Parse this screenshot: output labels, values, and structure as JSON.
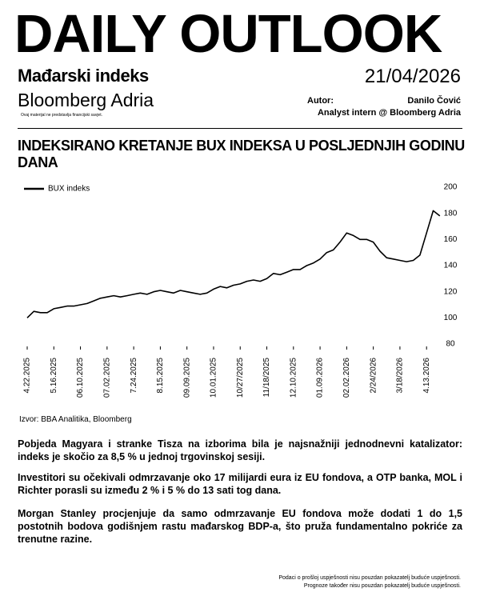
{
  "header": {
    "title": "DAILY OUTLOOK",
    "subtitle": "Mađarski indeks",
    "date": "21/04/2026",
    "brand": "Bloomberg Adria",
    "author_label": "Autor:",
    "author_name": "Danilo Čović",
    "author_role": "Analyst intern @ Bloomberg Adria",
    "disclaimer": "Ovaj materijal ne predstavlja financijski savjet."
  },
  "chart_data": {
    "type": "line",
    "title": "INDEKSIRANO KRETANJE BUX INDEKSA U POSLJEDNJIH GODINU DANA",
    "categories": [
      "4.22.2025",
      null,
      null,
      null,
      "5.16.2025",
      null,
      null,
      null,
      "06.10.2025",
      null,
      null,
      null,
      "07.02.2025",
      null,
      null,
      null,
      "7.24.2025",
      null,
      null,
      null,
      "8.15.2025",
      null,
      null,
      null,
      "09.09.2025",
      null,
      null,
      null,
      "10.01.2025",
      null,
      null,
      null,
      "10/27/2025",
      null,
      null,
      null,
      "11/18/2025",
      null,
      null,
      null,
      "12.10.2025",
      null,
      null,
      null,
      "01.09.2026",
      null,
      null,
      null,
      "02.02.2026",
      null,
      null,
      null,
      "2/24/2026",
      null,
      null,
      null,
      "3/18/2026",
      null,
      null,
      null,
      "4.13.2026",
      null,
      null
    ],
    "series": [
      {
        "name": "BUX indeks",
        "color": "#000000",
        "values": [
          100,
          105,
          104,
          104,
          107,
          108,
          109,
          109,
          110,
          111,
          113,
          115,
          116,
          117,
          116,
          117,
          118,
          119,
          118,
          120,
          121,
          120,
          119,
          121,
          120,
          119,
          118,
          119,
          122,
          124,
          123,
          125,
          126,
          128,
          129,
          128,
          130,
          134,
          133,
          135,
          137,
          137,
          140,
          142,
          145,
          150,
          152,
          158,
          165,
          163,
          160,
          160,
          158,
          151,
          146,
          145,
          144,
          143,
          144,
          148,
          165,
          182,
          178
        ]
      }
    ],
    "ylim": [
      80,
      200
    ],
    "yticks": [
      80,
      100,
      120,
      140,
      160,
      180,
      200
    ],
    "y_axis_side": "right",
    "legend": "top-left",
    "grid": false,
    "source": "Izvor: BBA Analitika, Bloomberg"
  },
  "paragraphs": [
    "Pobjeda Magyara i stranke Tisza na izborima bila je najsnažniji jednodnevni katalizator: indeks je skočio za 8,5 % u jednoj trgovinskoj sesiji.",
    "Investitori su očekivali odmrzavanje oko 17 milijardi eura iz EU fondova, a OTP banka, MOL i Richter porasli su između 2 % i 5 % do 13 sati tog dana.",
    "Morgan Stanley procjenjuje da samo odmrzavanje EU fondova može dodati 1 do 1,5 postotnih bodova godišnjem rastu mađarskog BDP-a, što pruža fundamentalno pokriće za trenutne razine."
  ],
  "footer": [
    "Podaci o prošloj uspješnosti nisu pouzdan pokazatelj buduće uspješnosti.",
    "Prognoze također nisu pouzdan pokazatelj buduće uspješnosti."
  ]
}
